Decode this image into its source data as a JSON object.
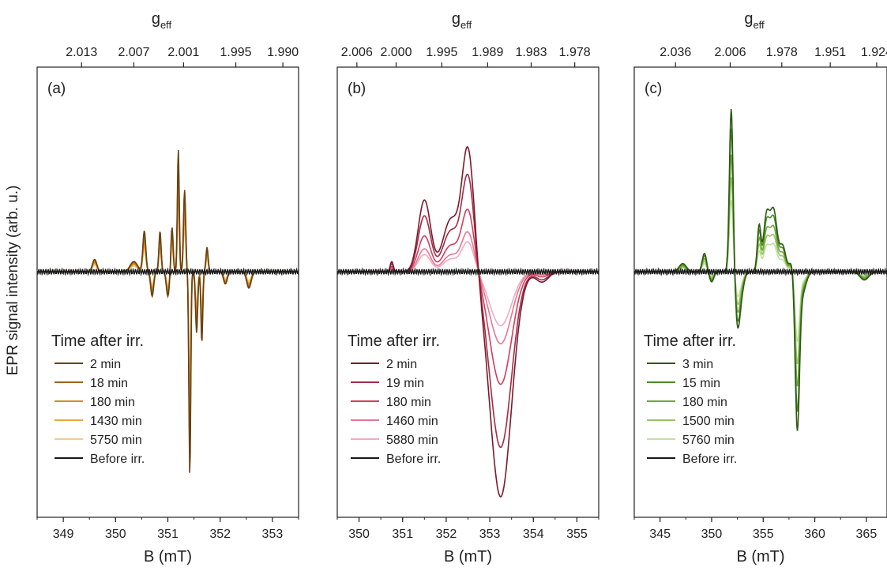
{
  "figure": {
    "ylabel": "EPR signal intensity (arb. u.)"
  },
  "chart_data": [
    {
      "type": "line",
      "panel_label": "(a)",
      "xlabel": "B (mT)",
      "top_axis_label": "g",
      "top_axis_sub": "eff",
      "xlim": [
        348.5,
        353.5
      ],
      "xticks": [
        349,
        350,
        351,
        352,
        353
      ],
      "top_ticks": [
        {
          "B": 349.35,
          "label": "2.013"
        },
        {
          "B": 350.35,
          "label": "2.007"
        },
        {
          "B": 351.3,
          "label": "2.001"
        },
        {
          "B": 352.3,
          "label": "1.995"
        },
        {
          "B": 353.2,
          "label": "1.990"
        }
      ],
      "ylim": [
        -1.2,
        1.0
      ],
      "legend_title": "Time after irr.",
      "baseline": {
        "name": "Before irr.",
        "color": "#1a1a1a"
      },
      "peaks": [
        [
          349.6,
          0.06,
          0.06
        ],
        [
          350.35,
          0.05,
          0.1
        ],
        [
          350.55,
          0.2,
          0.04
        ],
        [
          350.7,
          -0.12,
          0.04
        ],
        [
          350.85,
          0.2,
          0.03
        ],
        [
          351.0,
          -0.12,
          0.04
        ],
        [
          351.08,
          0.22,
          0.03
        ],
        [
          351.2,
          0.6,
          0.025
        ],
        [
          351.32,
          0.4,
          0.03
        ],
        [
          351.42,
          -1.0,
          0.025
        ],
        [
          351.55,
          -0.3,
          0.03
        ],
        [
          351.65,
          -0.35,
          0.025
        ],
        [
          351.75,
          0.12,
          0.03
        ],
        [
          352.1,
          -0.06,
          0.05
        ],
        [
          352.55,
          -0.08,
          0.06
        ]
      ],
      "series": [
        {
          "name": "2 min",
          "color": "#6b4110",
          "scale": 1.0
        },
        {
          "name": "18 min",
          "color": "#a0641a",
          "scale": 0.9
        },
        {
          "name": "180 min",
          "color": "#d08f24",
          "scale": 0.78
        },
        {
          "name": "1430 min",
          "color": "#e9a93a",
          "scale": 0.68
        },
        {
          "name": "5750 min",
          "color": "#f2cc8a",
          "scale": 0.55
        }
      ]
    },
    {
      "type": "line",
      "panel_label": "(b)",
      "xlabel": "B (mT)",
      "top_axis_label": "g",
      "top_axis_sub": "eff",
      "xlim": [
        349.5,
        355.5
      ],
      "xticks": [
        350,
        351,
        352,
        353,
        354,
        355
      ],
      "top_ticks": [
        {
          "B": 349.95,
          "label": "2.006"
        },
        {
          "B": 350.85,
          "label": "2.000"
        },
        {
          "B": 351.9,
          "label": "1.995"
        },
        {
          "B": 352.95,
          "label": "1.989"
        },
        {
          "B": 353.95,
          "label": "1.983"
        },
        {
          "B": 354.95,
          "label": "1.978"
        }
      ],
      "ylim": [
        -1.2,
        1.0
      ],
      "legend_title": "Time after irr.",
      "baseline": {
        "name": "Before irr.",
        "color": "#1a1a1a"
      },
      "peaks": [
        [
          350.75,
          0.05,
          0.05
        ],
        [
          351.5,
          0.35,
          0.2
        ],
        [
          352.1,
          0.25,
          0.25
        ],
        [
          352.5,
          0.6,
          0.2
        ],
        [
          353.25,
          -1.1,
          0.35
        ],
        [
          354.2,
          -0.05,
          0.2
        ]
      ],
      "series": [
        {
          "name": "2 min",
          "color": "#7a1a2c",
          "scale": 1.0
        },
        {
          "name": "19 min",
          "color": "#a52a45",
          "scale": 0.78
        },
        {
          "name": "180 min",
          "color": "#d23d5e",
          "scale": 0.5
        },
        {
          "name": "1460 min",
          "color": "#e47892",
          "scale": 0.32
        },
        {
          "name": "5880 min",
          "color": "#f3aac0",
          "scale": 0.24
        }
      ]
    },
    {
      "type": "line",
      "panel_label": "(c)",
      "xlabel": "B (mT)",
      "top_axis_label": "g",
      "top_axis_sub": "eff",
      "xlim": [
        342.5,
        367
      ],
      "xticks": [
        345,
        350,
        355,
        360,
        365
      ],
      "top_ticks": [
        {
          "B": 346.5,
          "label": "2.036"
        },
        {
          "B": 351.8,
          "label": "2.006"
        },
        {
          "B": 356.8,
          "label": "1.978"
        },
        {
          "B": 361.5,
          "label": "1.951"
        },
        {
          "B": 366.0,
          "label": "1.924"
        }
      ],
      "ylim": [
        -1.2,
        1.0
      ],
      "legend_title": "Time after irr.",
      "baseline": {
        "name": "Before irr.",
        "color": "#1a1a1a"
      },
      "peaks": [
        [
          347.2,
          0.04,
          0.5
        ],
        [
          349.3,
          0.09,
          0.3
        ],
        [
          350.0,
          -0.05,
          0.3
        ],
        [
          351.9,
          0.8,
          0.25
        ],
        [
          352.5,
          -0.2,
          0.3
        ],
        [
          352.8,
          -0.12,
          0.4
        ],
        [
          354.6,
          0.22,
          0.25
        ],
        [
          355.3,
          0.25,
          0.4
        ],
        [
          356.0,
          0.3,
          0.5
        ],
        [
          356.9,
          0.12,
          0.4
        ],
        [
          357.8,
          0.05,
          0.4
        ],
        [
          358.3,
          -0.75,
          0.3
        ],
        [
          358.8,
          -0.1,
          0.5
        ],
        [
          364.8,
          -0.04,
          0.6
        ]
      ],
      "series": [
        {
          "name": "3 min",
          "color": "#2f5a16",
          "scale": 1.0
        },
        {
          "name": "15 min",
          "color": "#4a8c22",
          "scale": 0.88
        },
        {
          "name": "180 min",
          "color": "#72a83a",
          "scale": 0.72
        },
        {
          "name": "1500 min",
          "color": "#97c466",
          "scale": 0.58
        },
        {
          "name": "5760 min",
          "color": "#c3dfa1",
          "scale": 0.44
        }
      ]
    }
  ]
}
